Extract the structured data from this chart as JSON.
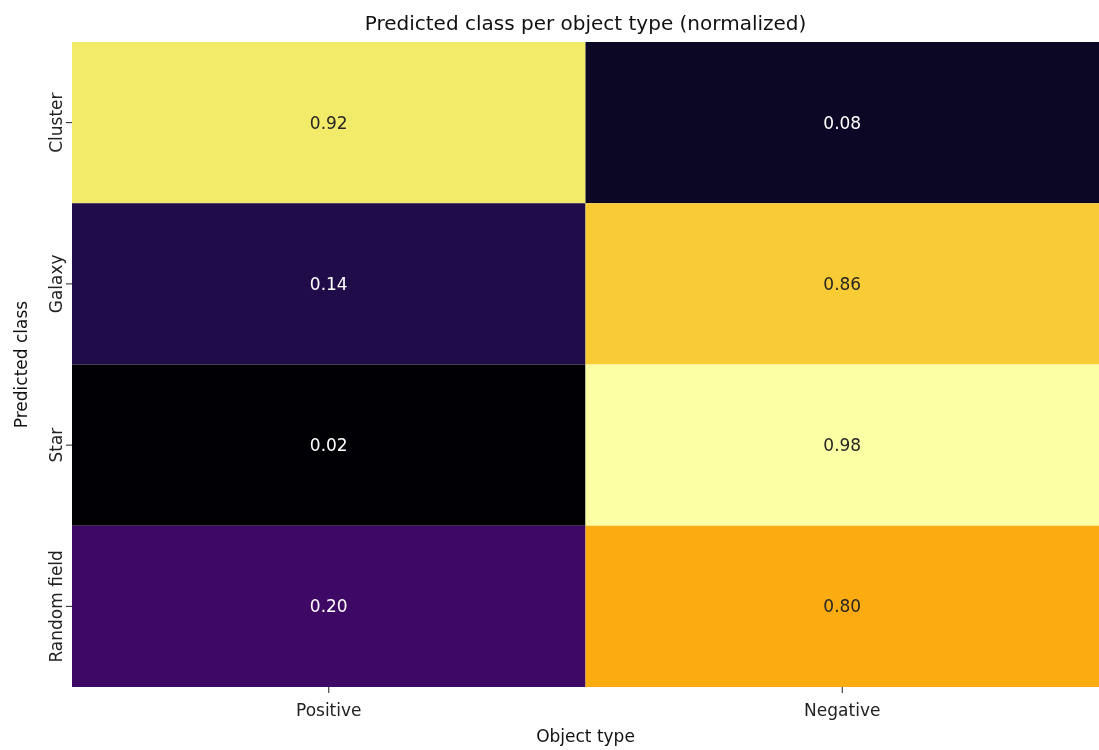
{
  "chart_data": {
    "type": "heatmap",
    "title": "Predicted class per object type (normalized)",
    "xlabel": "Object type",
    "ylabel": "Predicted class",
    "categories": [
      "Positive",
      "Negative"
    ],
    "y_categories": [
      "Cluster",
      "Galaxy",
      "Star",
      "Random field"
    ],
    "cells": [
      [
        0.92,
        0.08
      ],
      [
        0.14,
        0.86
      ],
      [
        0.02,
        0.98
      ],
      [
        0.2,
        0.8
      ]
    ],
    "cell_labels": [
      [
        "0.92",
        "0.08"
      ],
      [
        "0.14",
        "0.86"
      ],
      [
        "0.02",
        "0.98"
      ],
      [
        "0.20",
        "0.80"
      ]
    ]
  }
}
